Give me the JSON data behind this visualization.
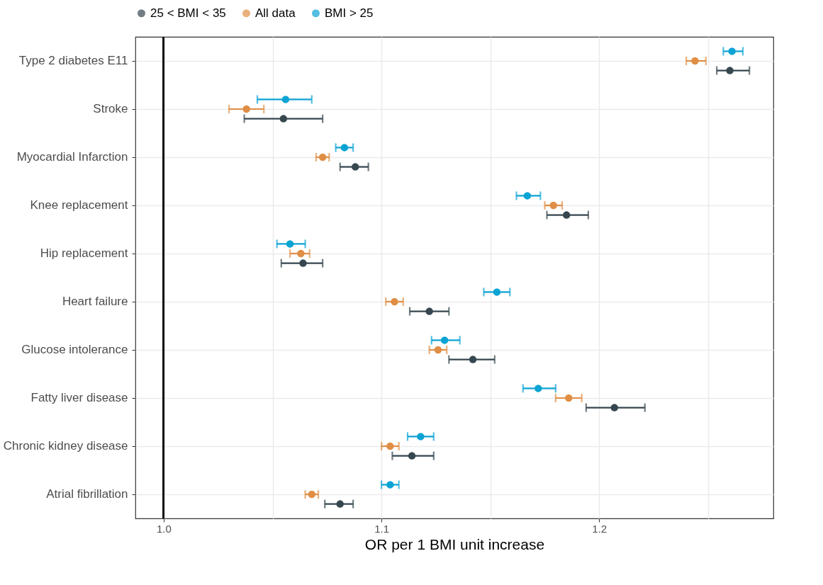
{
  "chart_data": {
    "type": "scatter",
    "orientation": "horizontal",
    "xlabel": "OR per 1 BMI unit increase",
    "categories": [
      "Type 2 diabetes E11",
      "Stroke",
      "Myocardial Infarction",
      "Knee replacement",
      "Hip replacement",
      "Heart failure",
      "Glucose intolerance",
      "Fatty liver disease",
      "Chronic kidney disease",
      "Atrial fibrillation"
    ],
    "series": [
      {
        "name": "25 < BMI < 35",
        "color": "#36474f",
        "values": [
          1.26,
          1.055,
          1.088,
          1.185,
          1.064,
          1.122,
          1.142,
          1.207,
          1.114,
          1.081
        ],
        "errors": [
          [
            1.254,
            1.269
          ],
          [
            1.037,
            1.073
          ],
          [
            1.081,
            1.094
          ],
          [
            1.176,
            1.195
          ],
          [
            1.054,
            1.073
          ],
          [
            1.113,
            1.131
          ],
          [
            1.131,
            1.152
          ],
          [
            1.194,
            1.221
          ],
          [
            1.105,
            1.124
          ],
          [
            1.074,
            1.087
          ]
        ]
      },
      {
        "name": "All data",
        "color": "#e08e45",
        "values": [
          1.244,
          1.038,
          1.073,
          1.179,
          1.063,
          1.106,
          1.126,
          1.186,
          1.104,
          1.068
        ],
        "errors": [
          [
            1.24,
            1.249
          ],
          [
            1.03,
            1.046
          ],
          [
            1.07,
            1.076
          ],
          [
            1.175,
            1.183
          ],
          [
            1.058,
            1.067
          ],
          [
            1.102,
            1.11
          ],
          [
            1.122,
            1.13
          ],
          [
            1.18,
            1.192
          ],
          [
            1.1,
            1.108
          ],
          [
            1.065,
            1.071
          ]
        ]
      },
      {
        "name": "BMI > 25",
        "color": "#0ba3d4",
        "values": [
          1.261,
          1.056,
          1.083,
          1.167,
          1.058,
          1.153,
          1.129,
          1.172,
          1.118,
          1.104
        ],
        "errors": [
          [
            1.257,
            1.266
          ],
          [
            1.043,
            1.068
          ],
          [
            1.079,
            1.087
          ],
          [
            1.162,
            1.173
          ],
          [
            1.052,
            1.065
          ],
          [
            1.147,
            1.159
          ],
          [
            1.123,
            1.136
          ],
          [
            1.165,
            1.18
          ],
          [
            1.112,
            1.124
          ],
          [
            1.1,
            1.108
          ]
        ]
      }
    ],
    "xlim": [
      0.987,
      1.28
    ],
    "xticks": [
      {
        "value": 1.0,
        "label": "1.0"
      },
      {
        "value": 1.05,
        "label": null
      },
      {
        "value": 1.1,
        "label": "1.1"
      },
      {
        "value": 1.15,
        "label": null
      },
      {
        "value": 1.2,
        "label": "1.2"
      },
      {
        "value": 1.25,
        "label": null
      }
    ],
    "ref_lines": [
      {
        "axis": "x",
        "value": 1.0,
        "color": "#000000"
      }
    ],
    "grid": true,
    "legend": "top",
    "marker": "circle"
  }
}
